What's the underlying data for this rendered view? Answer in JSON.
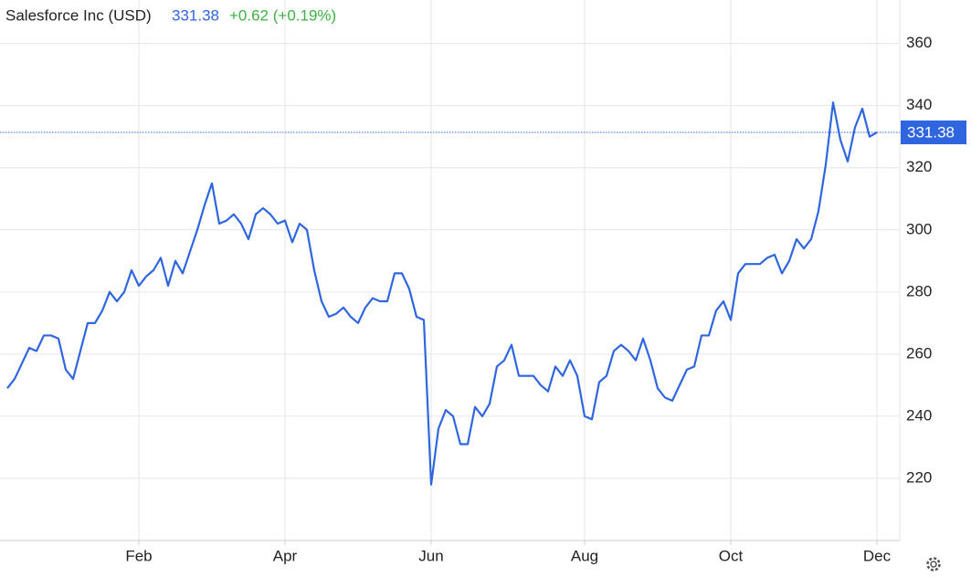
{
  "chart_data": {
    "type": "line",
    "title": "Salesforce Inc (USD)",
    "price": 331.38,
    "change": "+0.62 (+0.19%)",
    "categories": [
      null,
      null,
      null,
      null,
      null,
      null,
      null,
      null,
      null,
      null,
      null,
      null,
      null,
      null,
      null,
      null,
      null,
      null,
      "Feb",
      null,
      null,
      null,
      null,
      null,
      null,
      null,
      null,
      null,
      null,
      null,
      null,
      null,
      null,
      null,
      null,
      null,
      null,
      null,
      "Apr",
      null,
      null,
      null,
      null,
      null,
      null,
      null,
      null,
      null,
      null,
      null,
      null,
      null,
      null,
      null,
      null,
      null,
      null,
      null,
      "Jun",
      null,
      null,
      null,
      null,
      null,
      null,
      null,
      null,
      null,
      null,
      null,
      null,
      null,
      null,
      null,
      null,
      null,
      null,
      null,
      null,
      "Aug",
      null,
      null,
      null,
      null,
      null,
      null,
      null,
      null,
      null,
      null,
      null,
      null,
      null,
      null,
      null,
      null,
      null,
      null,
      null,
      "Oct",
      null,
      null,
      null,
      null,
      null,
      null,
      null,
      null,
      null,
      null,
      null,
      null,
      null,
      null,
      null,
      null,
      null,
      null,
      null,
      "Dec"
    ],
    "series": [
      {
        "name": "Salesforce Inc (USD)",
        "color": "#2f66e0",
        "values": [
          249,
          252,
          257,
          262,
          261,
          266,
          266,
          265,
          255,
          252,
          261,
          270,
          270,
          274,
          280,
          277,
          280,
          287,
          282,
          285,
          287,
          291,
          282,
          290,
          286,
          293,
          300,
          308,
          315,
          302,
          303,
          305,
          302,
          297,
          305,
          307,
          305,
          302,
          303,
          296,
          302,
          300,
          287,
          277,
          272,
          273,
          275,
          272,
          270,
          275,
          278,
          277,
          277,
          286,
          286,
          281,
          272,
          271,
          218,
          236,
          242,
          240,
          231,
          231,
          243,
          240,
          244,
          256,
          258,
          263,
          253,
          253,
          253,
          250,
          248,
          256,
          253,
          258,
          253,
          240,
          239,
          251,
          253,
          261,
          263,
          261,
          258,
          265,
          258,
          249,
          246,
          245,
          250,
          255,
          256,
          266,
          266,
          274,
          277,
          271,
          286,
          289,
          289,
          289,
          291,
          292,
          286,
          290,
          297,
          294,
          297,
          306,
          321,
          341,
          329,
          322,
          333,
          339,
          330,
          331.38
        ]
      }
    ],
    "ylim": [
      200,
      374
    ],
    "yticks": [
      220,
      240,
      260,
      280,
      300,
      320,
      340,
      360
    ],
    "grid": true
  }
}
